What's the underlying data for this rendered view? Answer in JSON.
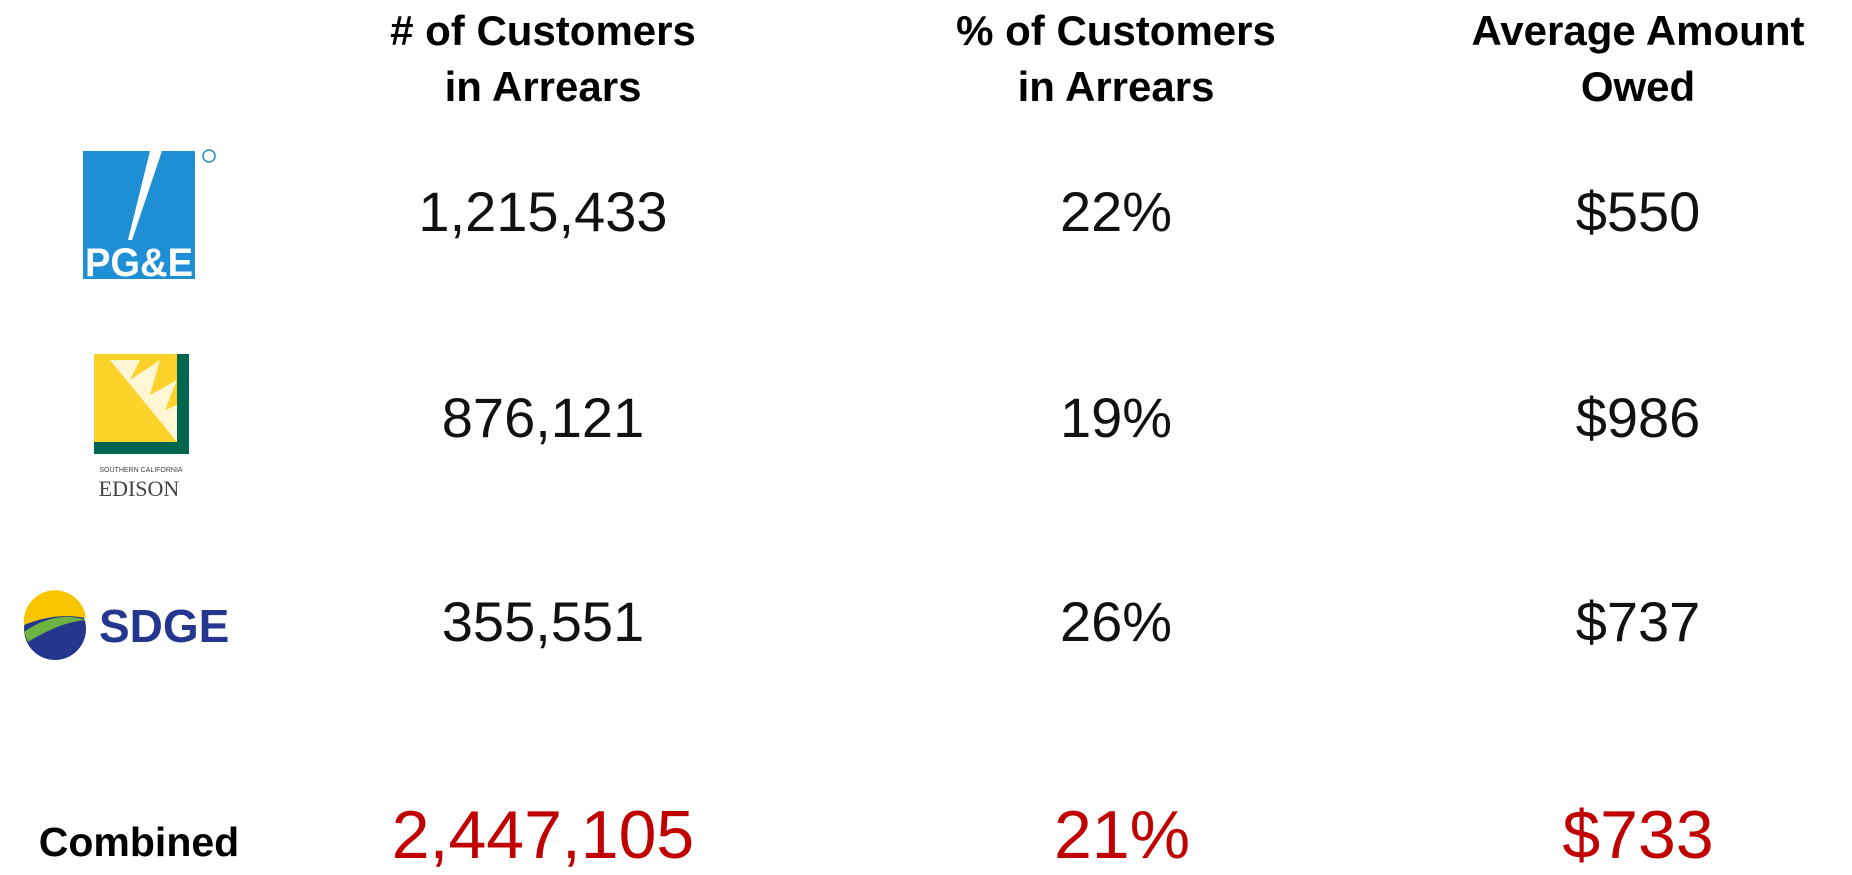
{
  "table": {
    "header": [
      [
        "# of Customers",
        "in Arrears"
      ],
      [
        "% of Customers",
        "in Arrears"
      ],
      [
        "Average Amount",
        "Owed"
      ]
    ],
    "rows": [
      {
        "logo": [
          "PG&E"
        ],
        "cells": [
          "1,215,433",
          "22%",
          "$550"
        ]
      },
      {
        "logo": [
          "SOUTHERN CALIFORNIA",
          "EDISON"
        ],
        "cells": [
          "876,121",
          "19%",
          "$986"
        ]
      },
      {
        "logo": [
          "SDGE"
        ],
        "cells": [
          "355,551",
          "26%",
          "$737"
        ]
      }
    ],
    "total": {
      "label": "Combined",
      "cells": [
        "2,447,105",
        "21%",
        "$733"
      ]
    }
  }
}
